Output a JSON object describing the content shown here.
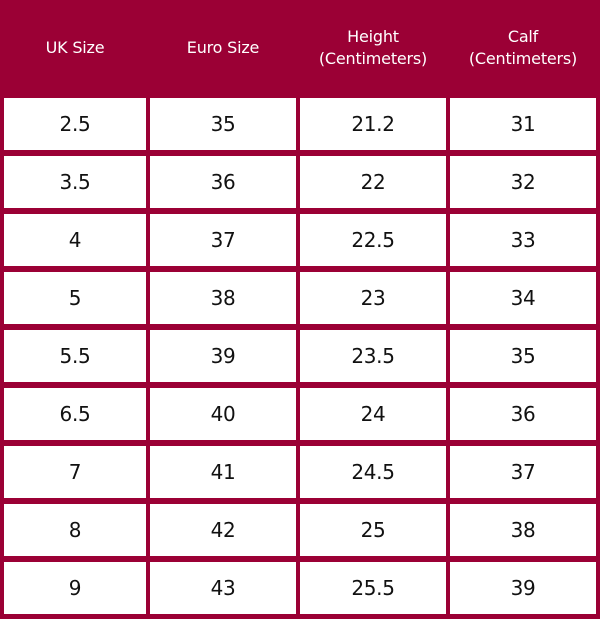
{
  "headers": [
    [
      "UK Size"
    ],
    [
      "Euro Size"
    ],
    [
      "Height",
      "(Centimeters)"
    ],
    [
      "Calf",
      "(Centimeters)"
    ]
  ],
  "rows": [
    [
      "2.5",
      "35",
      "21.2",
      "31"
    ],
    [
      "3.5",
      "36",
      "22",
      "32"
    ],
    [
      "4",
      "37",
      "22.5",
      "33"
    ],
    [
      "5",
      "38",
      "23",
      "34"
    ],
    [
      "5.5",
      "39",
      "23.5",
      "35"
    ],
    [
      "6.5",
      "40",
      "24",
      "36"
    ],
    [
      "7",
      "41",
      "24.5",
      "37"
    ],
    [
      "8",
      "42",
      "25",
      "38"
    ],
    [
      "9",
      "43",
      "25.5",
      "39"
    ]
  ],
  "colors": {
    "accent": "#9b0035",
    "header_text": "#ffffff",
    "cell_background": "#ffffff",
    "cell_text": "#111111"
  }
}
